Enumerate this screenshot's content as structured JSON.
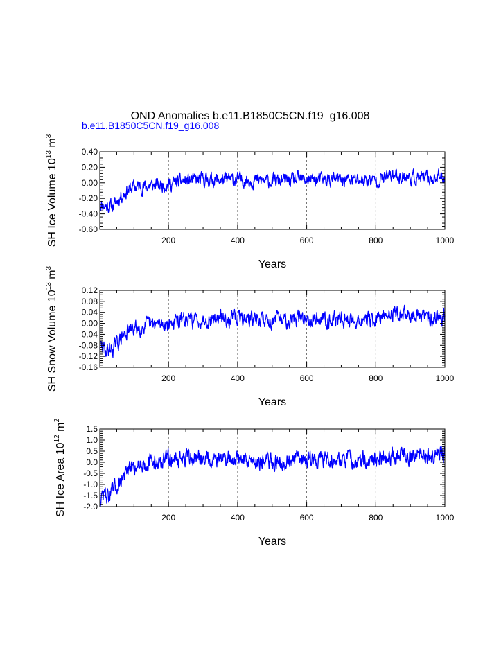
{
  "title": "OND Anomalies b.e11.B1850C5CN.f19_g16.008",
  "colors": {
    "series": "#0000ff",
    "axis": "#000000",
    "grid": "#555555",
    "background": "#ffffff"
  },
  "chart_data": [
    {
      "type": "line",
      "legend": "b.e11.B1850C5CN.f19_g16.008",
      "xlabel": "Years",
      "ylabel": "SH Ice Volume 10^13 m^3",
      "ylabel_parts": {
        "text": "SH Ice Volume 10",
        "exp1": "13",
        "unit": " m",
        "exp2": "3"
      },
      "xlim": [
        1,
        1000
      ],
      "ylim": [
        -0.6,
        0.4
      ],
      "xticks": [
        200,
        400,
        600,
        800,
        1000
      ],
      "xtick_labels": [
        "200",
        "400",
        "600",
        "800",
        "1000"
      ],
      "yticks": [
        -0.6,
        -0.4,
        -0.2,
        0.0,
        0.2,
        0.4
      ],
      "ytick_labels": [
        "-0.60",
        "-0.40",
        "-0.20",
        "0.00",
        "0.20",
        "0.40"
      ],
      "grid_x": [
        200,
        400,
        600,
        800
      ],
      "trend": {
        "x": [
          1,
          20,
          40,
          60,
          80,
          100,
          130,
          160,
          200,
          240,
          300,
          400,
          500,
          600,
          700,
          800,
          850,
          900,
          950,
          1000
        ],
        "y": [
          -0.27,
          -0.3,
          -0.3,
          -0.18,
          -0.1,
          -0.05,
          -0.05,
          -0.03,
          -0.02,
          0.02,
          0.04,
          0.04,
          0.02,
          0.04,
          0.04,
          0.03,
          0.1,
          0.07,
          0.05,
          0.08
        ]
      },
      "noise_amplitude": 0.07,
      "seed": 11
    },
    {
      "type": "line",
      "xlabel": "Years",
      "ylabel": "SH Snow Volume 10^13 m^3",
      "ylabel_parts": {
        "text": "SH Snow Volume 10",
        "exp1": "13",
        "unit": " m",
        "exp2": "3"
      },
      "xlim": [
        1,
        1000
      ],
      "ylim": [
        -0.16,
        0.12
      ],
      "xticks": [
        200,
        400,
        600,
        800,
        1000
      ],
      "xtick_labels": [
        "200",
        "400",
        "600",
        "800",
        "1000"
      ],
      "yticks": [
        -0.16,
        -0.12,
        -0.08,
        -0.04,
        0.0,
        0.04,
        0.08,
        0.12
      ],
      "ytick_labels": [
        "-0.16",
        "-0.12",
        "-0.08",
        "-0.04",
        "0.00",
        "0.04",
        "0.08",
        "0.12"
      ],
      "grid_x": [
        200,
        400,
        600,
        800
      ],
      "trend": {
        "x": [
          1,
          20,
          40,
          60,
          80,
          100,
          130,
          160,
          200,
          240,
          300,
          400,
          500,
          600,
          700,
          800,
          850,
          900,
          950,
          1000
        ],
        "y": [
          -0.08,
          -0.1,
          -0.09,
          -0.06,
          -0.03,
          -0.02,
          -0.01,
          -0.005,
          0.0,
          0.01,
          0.015,
          0.02,
          0.01,
          0.02,
          0.015,
          0.01,
          0.04,
          0.03,
          0.02,
          0.03
        ]
      },
      "noise_amplitude": 0.022,
      "seed": 29
    },
    {
      "type": "line",
      "xlabel": "Years",
      "ylabel": "SH Ice Area 10^12 m^2",
      "ylabel_parts": {
        "text": "SH Ice Area 10",
        "exp1": "12",
        "unit": " m",
        "exp2": "2"
      },
      "xlim": [
        1,
        1000
      ],
      "ylim": [
        -2.0,
        1.5
      ],
      "xticks": [
        200,
        400,
        600,
        800,
        1000
      ],
      "xtick_labels": [
        "200",
        "400",
        "600",
        "800",
        "1000"
      ],
      "yticks": [
        -2.0,
        -1.5,
        -1.0,
        -0.5,
        0.0,
        0.5,
        1.0,
        1.5
      ],
      "ytick_labels": [
        "-2.0",
        "-1.5",
        "-1.0",
        "-0.5",
        "0.0",
        "0.5",
        "1.0",
        "1.5"
      ],
      "grid_x": [
        200,
        400,
        600,
        800
      ],
      "trend": {
        "x": [
          1,
          10,
          30,
          50,
          70,
          90,
          110,
          140,
          180,
          200,
          240,
          300,
          400,
          500,
          600,
          700,
          800,
          850,
          900,
          950,
          1000
        ],
        "y": [
          -1.8,
          -1.4,
          -1.5,
          -1.1,
          -0.6,
          -0.3,
          -0.1,
          0.0,
          0.0,
          0.2,
          0.15,
          0.2,
          0.15,
          0.0,
          0.15,
          0.1,
          0.1,
          0.35,
          0.3,
          0.25,
          0.45
        ]
      },
      "noise_amplitude": 0.3,
      "seed": 47
    }
  ]
}
